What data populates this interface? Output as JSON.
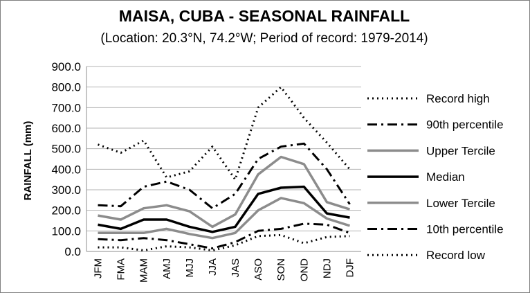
{
  "chart_data": {
    "type": "line",
    "title": "MAISA, CUBA - SEASONAL RAINFALL",
    "subtitle": "(Location: 20.3°N, 74.2°W; Period of record: 1979-2014)",
    "xlabel": "",
    "ylabel": "RAINFALL (mm)",
    "ylim": [
      0,
      900
    ],
    "yticks": [
      "0.0",
      "100.0",
      "200.0",
      "300.0",
      "400.0",
      "500.0",
      "600.0",
      "700.0",
      "800.0",
      "900.0"
    ],
    "grid": true,
    "legend_position": "right",
    "categories": [
      "JFM",
      "FMA",
      "MAM",
      "AMJ",
      "MJJ",
      "JJA",
      "JAS",
      "ASO",
      "SON",
      "OND",
      "NDJ",
      "DJF"
    ],
    "series": [
      {
        "name": "Record high",
        "style": "dotted",
        "color": "#000000",
        "values": [
          520,
          480,
          540,
          360,
          390,
          510,
          350,
          700,
          800,
          650,
          530,
          400
        ]
      },
      {
        "name": "90th percentile",
        "style": "dashdot",
        "color": "#000000",
        "values": [
          225,
          220,
          315,
          340,
          300,
          210,
          280,
          450,
          510,
          525,
          400,
          230
        ]
      },
      {
        "name": "Upper Tercile",
        "style": "solid",
        "color": "#8c8c8c",
        "values": [
          175,
          155,
          210,
          225,
          195,
          120,
          180,
          375,
          460,
          425,
          240,
          205
        ]
      },
      {
        "name": "Median",
        "style": "solid",
        "color": "#000000",
        "values": [
          130,
          110,
          155,
          155,
          120,
          95,
          120,
          280,
          310,
          315,
          185,
          165
        ]
      },
      {
        "name": "Lower Tercile",
        "style": "solid",
        "color": "#8c8c8c",
        "values": [
          90,
          90,
          90,
          110,
          85,
          65,
          90,
          200,
          260,
          235,
          160,
          125
        ]
      },
      {
        "name": "10th percentile",
        "style": "dashdot",
        "color": "#000000",
        "values": [
          60,
          55,
          65,
          55,
          35,
          15,
          45,
          100,
          110,
          135,
          130,
          90
        ]
      },
      {
        "name": "Record low",
        "style": "dotted",
        "color": "#000000",
        "values": [
          20,
          20,
          5,
          25,
          20,
          5,
          30,
          75,
          80,
          40,
          70,
          75
        ]
      }
    ]
  }
}
